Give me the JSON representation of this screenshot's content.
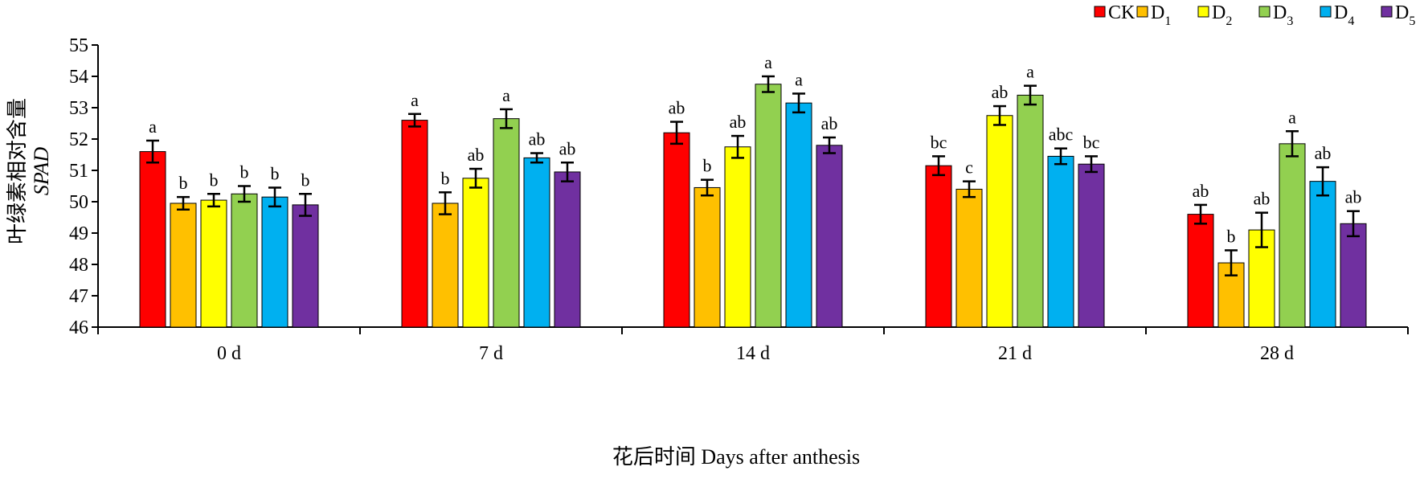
{
  "chart_data": {
    "type": "bar",
    "title": "",
    "xlabel": "花后时间 Days after anthesis",
    "ylabel": "叶绿素相对含量",
    "ylabel_italic": "SPAD",
    "ylim": [
      46,
      55
    ],
    "yticks": [
      46,
      47,
      48,
      49,
      50,
      51,
      52,
      53,
      54,
      55
    ],
    "grid": false,
    "legend_placement": "top-right",
    "categories": [
      "0 d",
      "7 d",
      "14 d",
      "21 d",
      "28 d"
    ],
    "series": [
      {
        "name": "CK",
        "sub": "",
        "color": "#ff0000",
        "values": [
          51.6,
          52.6,
          52.2,
          51.15,
          49.6
        ],
        "errors": [
          0.35,
          0.2,
          0.35,
          0.3,
          0.3
        ],
        "letters": [
          "a",
          "a",
          "ab",
          "bc",
          "ab"
        ]
      },
      {
        "name": "D",
        "sub": "1",
        "color": "#ffc000",
        "values": [
          49.95,
          49.95,
          50.45,
          50.4,
          48.05
        ],
        "errors": [
          0.2,
          0.35,
          0.25,
          0.25,
          0.4
        ],
        "letters": [
          "b",
          "b",
          "b",
          "c",
          "b"
        ]
      },
      {
        "name": "D",
        "sub": "2",
        "color": "#ffff00",
        "values": [
          50.05,
          50.75,
          51.75,
          52.75,
          49.1
        ],
        "errors": [
          0.2,
          0.3,
          0.35,
          0.3,
          0.55
        ],
        "letters": [
          "b",
          "ab",
          "ab",
          "ab",
          "ab"
        ]
      },
      {
        "name": "D",
        "sub": "3",
        "color": "#92d050",
        "values": [
          50.25,
          52.65,
          53.75,
          53.4,
          51.85
        ],
        "errors": [
          0.25,
          0.3,
          0.25,
          0.3,
          0.4
        ],
        "letters": [
          "b",
          "a",
          "a",
          "a",
          "a"
        ]
      },
      {
        "name": "D",
        "sub": "4",
        "color": "#00b0f0",
        "values": [
          50.15,
          51.4,
          53.15,
          51.45,
          50.65
        ],
        "errors": [
          0.3,
          0.15,
          0.3,
          0.25,
          0.45
        ],
        "letters": [
          "b",
          "ab",
          "a",
          "abc",
          "ab"
        ]
      },
      {
        "name": "D",
        "sub": "5",
        "color": "#7030a0",
        "values": [
          49.9,
          50.95,
          51.8,
          51.2,
          49.3
        ],
        "errors": [
          0.35,
          0.3,
          0.25,
          0.25,
          0.4
        ],
        "letters": [
          "b",
          "ab",
          "ab",
          "bc",
          "ab"
        ]
      }
    ]
  }
}
